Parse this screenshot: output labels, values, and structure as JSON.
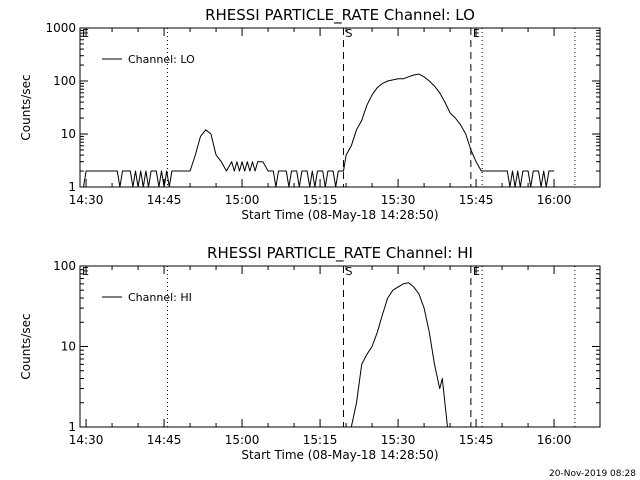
{
  "chart_data": [
    {
      "type": "line",
      "title": "RHESSI PARTICLE_RATE Channel: LO",
      "xlabel": "Start Time (08-May-18 14:28:50)",
      "ylabel": "Counts/sec",
      "yscale": "log",
      "xlim": [
        "14:28:50",
        "16:08:50"
      ],
      "ylim": [
        1,
        1000
      ],
      "xticks": [
        "14:30",
        "14:45",
        "15:00",
        "15:15",
        "15:30",
        "15:45",
        "16:00"
      ],
      "yticks": [
        "1",
        "10",
        "100",
        "1000"
      ],
      "legend": "Channel: LO",
      "legend_position": "top-left",
      "markers": [
        {
          "label": "S",
          "x": "15:19:30",
          "style": "dashed"
        },
        {
          "label": "E",
          "x": "15:44:00",
          "style": "dashed"
        }
      ],
      "dotted_lines": [
        "14:45:40",
        "15:46:10",
        "16:04:00"
      ],
      "corner_labels": [
        "E"
      ],
      "series": [
        {
          "name": "Channel: LO",
          "points": [
            [
              "14:28:50",
              1
            ],
            [
              "14:29:30",
              1
            ],
            [
              "14:30:00",
              2
            ],
            [
              "14:31:00",
              2
            ],
            [
              "14:33:00",
              2
            ],
            [
              "14:35:00",
              2
            ],
            [
              "14:36:00",
              2
            ],
            [
              "14:36:30",
              1
            ],
            [
              "14:37:00",
              2
            ],
            [
              "14:38:30",
              2
            ],
            [
              "14:39:00",
              1
            ],
            [
              "14:39:30",
              2
            ],
            [
              "14:40:00",
              1
            ],
            [
              "14:40:30",
              2
            ],
            [
              "14:41:00",
              1
            ],
            [
              "14:41:30",
              2
            ],
            [
              "14:42:00",
              1
            ],
            [
              "14:42:30",
              2
            ],
            [
              "14:43:30",
              2
            ],
            [
              "14:44:00",
              1
            ],
            [
              "14:44:30",
              2
            ],
            [
              "14:45:00",
              1
            ],
            [
              "14:45:30",
              2
            ],
            [
              "14:46:00",
              1
            ],
            [
              "14:46:30",
              2
            ],
            [
              "14:50:00",
              2
            ],
            [
              "14:51:00",
              4
            ],
            [
              "14:52:00",
              9
            ],
            [
              "14:53:00",
              12
            ],
            [
              "14:54:00",
              10
            ],
            [
              "14:55:00",
              4
            ],
            [
              "14:56:00",
              3
            ],
            [
              "14:57:00",
              2
            ],
            [
              "14:58:00",
              3
            ],
            [
              "14:58:30",
              2
            ],
            [
              "14:59:00",
              3
            ],
            [
              "14:59:30",
              2
            ],
            [
              "15:00:00",
              3
            ],
            [
              "15:00:30",
              2
            ],
            [
              "15:01:00",
              3
            ],
            [
              "15:01:30",
              2
            ],
            [
              "15:02:00",
              3
            ],
            [
              "15:02:30",
              2
            ],
            [
              "15:03:00",
              3
            ],
            [
              "15:04:00",
              3
            ],
            [
              "15:05:00",
              2
            ],
            [
              "15:06:00",
              2
            ],
            [
              "15:06:30",
              1
            ],
            [
              "15:07:00",
              2
            ],
            [
              "15:08:30",
              2
            ],
            [
              "15:09:00",
              1
            ],
            [
              "15:09:30",
              2
            ],
            [
              "15:10:30",
              2
            ],
            [
              "15:11:00",
              1
            ],
            [
              "15:11:30",
              2
            ],
            [
              "15:12:30",
              2
            ],
            [
              "15:13:00",
              1
            ],
            [
              "15:13:30",
              2
            ],
            [
              "15:14:00",
              1
            ],
            [
              "15:14:30",
              2
            ],
            [
              "15:15:30",
              2
            ],
            [
              "15:16:00",
              1
            ],
            [
              "15:16:30",
              2
            ],
            [
              "15:17:30",
              2
            ],
            [
              "15:18:00",
              1
            ],
            [
              "15:18:30",
              2
            ],
            [
              "15:19:30",
              2
            ],
            [
              "15:20:00",
              4
            ],
            [
              "15:21:00",
              6
            ],
            [
              "15:22:00",
              12
            ],
            [
              "15:23:00",
              18
            ],
            [
              "15:24:00",
              35
            ],
            [
              "15:25:00",
              55
            ],
            [
              "15:26:00",
              75
            ],
            [
              "15:27:00",
              90
            ],
            [
              "15:28:00",
              100
            ],
            [
              "15:29:00",
              105
            ],
            [
              "15:30:00",
              110
            ],
            [
              "15:31:00",
              110
            ],
            [
              "15:32:00",
              120
            ],
            [
              "15:33:00",
              130
            ],
            [
              "15:34:00",
              135
            ],
            [
              "15:35:00",
              120
            ],
            [
              "15:36:00",
              100
            ],
            [
              "15:37:00",
              80
            ],
            [
              "15:38:00",
              60
            ],
            [
              "15:39:00",
              40
            ],
            [
              "15:40:00",
              25
            ],
            [
              "15:41:00",
              20
            ],
            [
              "15:42:00",
              15
            ],
            [
              "15:43:00",
              10
            ],
            [
              "15:44:00",
              5
            ],
            [
              "15:45:00",
              3
            ],
            [
              "15:46:00",
              2
            ],
            [
              "15:50:00",
              2
            ],
            [
              "15:51:00",
              2
            ],
            [
              "15:51:30",
              1
            ],
            [
              "15:52:00",
              2
            ],
            [
              "15:52:30",
              1
            ],
            [
              "15:53:00",
              2
            ],
            [
              "15:53:30",
              1
            ],
            [
              "15:54:00",
              2
            ],
            [
              "15:55:00",
              2
            ],
            [
              "15:55:30",
              1
            ],
            [
              "15:56:00",
              2
            ],
            [
              "15:57:00",
              2
            ],
            [
              "15:57:30",
              1
            ],
            [
              "15:58:00",
              2
            ],
            [
              "15:58:30",
              1
            ],
            [
              "15:59:00",
              2
            ],
            [
              "16:00:00",
              2
            ]
          ]
        }
      ]
    },
    {
      "type": "line",
      "title": "RHESSI PARTICLE_RATE Channel: HI",
      "xlabel": "Start Time (08-May-18 14:28:50)",
      "ylabel": "Counts/sec",
      "yscale": "log",
      "xlim": [
        "14:28:50",
        "16:08:50"
      ],
      "ylim": [
        1,
        100
      ],
      "xticks": [
        "14:30",
        "14:45",
        "15:00",
        "15:15",
        "15:30",
        "15:45",
        "16:00"
      ],
      "yticks": [
        "1",
        "10",
        "100"
      ],
      "legend": "Channel: HI",
      "legend_position": "top-left",
      "markers": [
        {
          "label": "S",
          "x": "15:19:30",
          "style": "dashed"
        },
        {
          "label": "E",
          "x": "15:44:00",
          "style": "dashed"
        }
      ],
      "dotted_lines": [
        "14:45:40",
        "15:46:10",
        "16:04:00"
      ],
      "corner_labels": [
        "E"
      ],
      "series": [
        {
          "name": "Channel: HI",
          "points": [
            [
              "15:21:00",
              1
            ],
            [
              "15:22:00",
              2
            ],
            [
              "15:23:00",
              6
            ],
            [
              "15:24:00",
              8
            ],
            [
              "15:25:00",
              10
            ],
            [
              "15:26:00",
              15
            ],
            [
              "15:27:00",
              25
            ],
            [
              "15:28:00",
              40
            ],
            [
              "15:29:00",
              50
            ],
            [
              "15:30:00",
              55
            ],
            [
              "15:31:00",
              60
            ],
            [
              "15:32:00",
              62
            ],
            [
              "15:33:00",
              55
            ],
            [
              "15:34:00",
              45
            ],
            [
              "15:35:00",
              30
            ],
            [
              "15:36:00",
              15
            ],
            [
              "15:37:00",
              6
            ],
            [
              "15:38:00",
              3
            ],
            [
              "15:38:30",
              4
            ],
            [
              "15:39:00",
              2
            ],
            [
              "15:39:30",
              1
            ]
          ]
        }
      ]
    }
  ],
  "footer": {
    "timestamp": "20-Nov-2019 08:28"
  }
}
